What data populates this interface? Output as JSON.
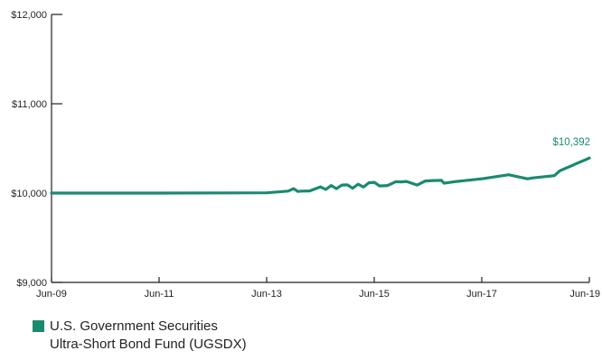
{
  "chart_data": {
    "type": "line",
    "x_tick_labels": [
      "Jun-09",
      "Jun-11",
      "Jun-13",
      "Jun-15",
      "Jun-17",
      "Jun-19"
    ],
    "y_tick_labels": [
      "$12,000",
      "$11,000",
      "$10,000",
      "$9,000"
    ],
    "y_ticks": [
      12000,
      11000,
      10000,
      9000
    ],
    "ylim": [
      9000,
      12000
    ],
    "xlim": [
      2009.5,
      2019.5
    ],
    "grid": false,
    "legend_position": "bottom-left",
    "end_value_label": "$10,392",
    "series": [
      {
        "name": "U.S. Government Securities Ultra-Short Bond Fund (UGSDX)",
        "color": "#1a8a6e",
        "x": [
          2009.5,
          2011.5,
          2013.5,
          2013.9,
          2014.0,
          2014.08,
          2014.15,
          2014.3,
          2014.5,
          2014.6,
          2014.7,
          2014.8,
          2014.9,
          2015.0,
          2015.1,
          2015.2,
          2015.3,
          2015.4,
          2015.5,
          2015.6,
          2015.75,
          2015.9,
          2016.0,
          2016.1,
          2016.3,
          2016.45,
          2016.6,
          2016.75,
          2016.8,
          2017.0,
          2017.5,
          2018.0,
          2018.35,
          2018.45,
          2018.85,
          2018.95,
          2019.5
        ],
        "values": [
          10000,
          10000,
          10003,
          10022,
          10050,
          10018,
          10022,
          10024,
          10070,
          10040,
          10085,
          10050,
          10090,
          10092,
          10055,
          10100,
          10068,
          10115,
          10120,
          10080,
          10085,
          10127,
          10125,
          10130,
          10090,
          10135,
          10140,
          10142,
          10110,
          10128,
          10160,
          10205,
          10160,
          10170,
          10195,
          10250,
          10392
        ]
      }
    ],
    "legend": {
      "line1": "U.S. Government Securities",
      "line2": "Ultra-Short Bond Fund (UGSDX)"
    }
  }
}
